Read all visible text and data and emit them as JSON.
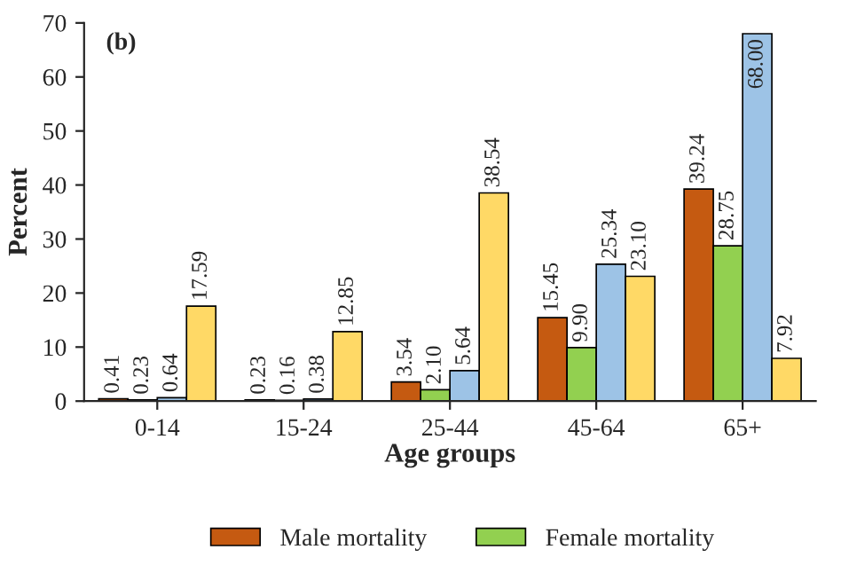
{
  "chart_data": {
    "type": "bar",
    "annotations": [
      "(b)"
    ],
    "xlabel": "Age groups",
    "ylabel": "Percent",
    "categories": [
      "0-14",
      "15-24",
      "25-44",
      "45-64",
      "65+"
    ],
    "series": [
      {
        "name": "Male mortality",
        "color": "#c55a11",
        "values": [
          0.41,
          0.23,
          3.54,
          15.45,
          39.24
        ],
        "value_labels": [
          "0.41",
          "0.23",
          "3.54",
          "15.45",
          "39.24"
        ]
      },
      {
        "name": "Female mortality",
        "color": "#92d050",
        "values": [
          0.23,
          0.16,
          2.1,
          9.9,
          28.75
        ],
        "value_labels": [
          "0.23",
          "0.16",
          "2.10",
          "9.90",
          "28.75"
        ]
      },
      {
        "color": "#9dc3e6",
        "values": [
          0.64,
          0.38,
          5.64,
          25.34,
          68.0
        ],
        "value_labels": [
          "0.64",
          "0.38",
          "5.64",
          "25.34",
          "68.00"
        ]
      },
      {
        "color": "#ffd966",
        "values": [
          17.59,
          12.85,
          38.54,
          23.1,
          7.92
        ],
        "value_labels": [
          "17.59",
          "12.85",
          "38.54",
          "23.10",
          "7.92"
        ]
      }
    ],
    "ylim": [
      0,
      70
    ],
    "yticks": [
      0,
      10,
      20,
      30,
      40,
      50,
      60,
      70
    ],
    "grid": false,
    "legend": "bottom"
  }
}
